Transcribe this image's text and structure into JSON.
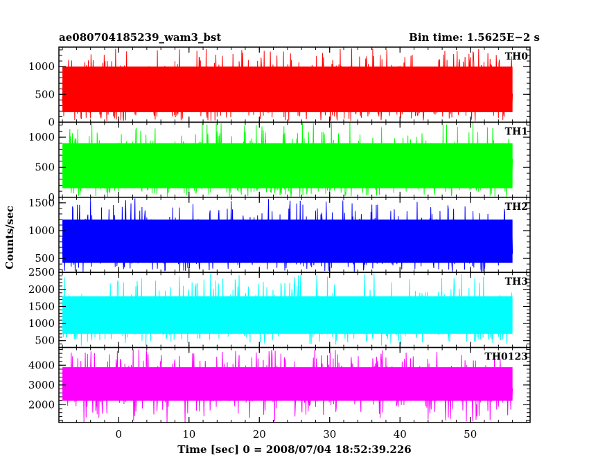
{
  "header": {
    "left": "ae080704185239_wam3_bst",
    "right": "Bin time: 1.5625E−2 s"
  },
  "xaxis": {
    "label": "Time [sec] 0 = 2008/07/04 18:52:39.226",
    "lim": [
      -8.5,
      58.5
    ],
    "ticks": [
      0,
      10,
      20,
      30,
      40,
      50
    ],
    "tick_labels": [
      "0",
      "10",
      "20",
      "30",
      "40",
      "50"
    ]
  },
  "yaxis": {
    "label": "Counts/sec"
  },
  "chart_data": {
    "type": "line",
    "title": "ae080704185239_wam3_bst",
    "subtitle": "Bin time: 1.5625E−2 s",
    "xlabel": "Time [sec] 0 = 2008/07/04 18:52:39.226",
    "ylabel": "Counts/sec",
    "x_range": [
      -8.0,
      56.0
    ],
    "bin_time": 0.015625,
    "grid": false,
    "panels": [
      {
        "name": "TH0",
        "color": "#ff0000",
        "ylim": [
          0,
          1350
        ],
        "yticks": [
          0,
          500,
          1000
        ],
        "ytick_labels": [
          "0",
          "500",
          "1000"
        ],
        "mean": 580,
        "band_low": 180,
        "band_high": 1000,
        "min": 20,
        "max": 1330
      },
      {
        "name": "TH1",
        "color": "#00ff00",
        "ylim": [
          0,
          1250
        ],
        "yticks": [
          0,
          500,
          1000
        ],
        "ytick_labels": [
          "0",
          "500",
          "1000"
        ],
        "mean": 520,
        "band_low": 150,
        "band_high": 900,
        "min": 10,
        "max": 1250
      },
      {
        "name": "TH2",
        "color": "#0000ff",
        "ylim": [
          250,
          1600
        ],
        "yticks": [
          500,
          1000,
          1500
        ],
        "ytick_labels": [
          "500",
          "1000",
          "1500"
        ],
        "mean": 800,
        "band_low": 420,
        "band_high": 1200,
        "min": 260,
        "max": 1580
      },
      {
        "name": "TH3",
        "color": "#00ffff",
        "ylim": [
          300,
          2500
        ],
        "yticks": [
          500,
          1000,
          1500,
          2000,
          2500
        ],
        "ytick_labels": [
          "500",
          "1000",
          "1500",
          "2000",
          "2500"
        ],
        "mean": 1200,
        "band_low": 700,
        "band_high": 1800,
        "min": 350,
        "max": 2480
      },
      {
        "name": "TH0123",
        "color": "#ff00ff",
        "ylim": [
          1100,
          4900
        ],
        "yticks": [
          2000,
          3000,
          4000
        ],
        "ytick_labels": [
          "2000",
          "3000",
          "4000"
        ],
        "mean": 3000,
        "band_low": 2200,
        "band_high": 3900,
        "min": 1100,
        "max": 4800
      }
    ]
  }
}
